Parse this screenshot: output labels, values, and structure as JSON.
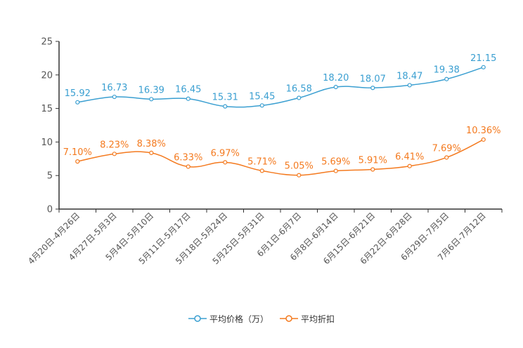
{
  "chart_data": {
    "type": "line",
    "categories": [
      "4月20日-4月26日",
      "4月27日-5月3日",
      "5月4日-5月10日",
      "5月11日-5月17日",
      "5月18日-5月24日",
      "5月25日-5月31日",
      "6月1日-6月7日",
      "6月8日-6月14日",
      "6月15日-6月21日",
      "6月22日-6月28日",
      "6月29日-7月5日",
      "7月6日-7月12日"
    ],
    "yticks": [
      0,
      5,
      10,
      15,
      20,
      25
    ],
    "ylim": [
      0,
      25
    ],
    "series": [
      {
        "name": "平均价格（万）",
        "color": "#3a9fd1",
        "values": [
          15.92,
          16.73,
          16.39,
          16.45,
          15.31,
          15.45,
          16.58,
          18.2,
          18.07,
          18.47,
          19.38,
          21.15
        ],
        "labels": [
          "15.92",
          "16.73",
          "16.39",
          "16.45",
          "15.31",
          "15.45",
          "16.58",
          "18.20",
          "18.07",
          "18.47",
          "19.38",
          "21.15"
        ]
      },
      {
        "name": "平均折扣",
        "color": "#f47a1f",
        "values": [
          7.1,
          8.23,
          8.38,
          6.33,
          6.97,
          5.71,
          5.05,
          5.69,
          5.91,
          6.41,
          7.69,
          10.36
        ],
        "labels": [
          "7.10%",
          "8.23%",
          "8.38%",
          "6.33%",
          "6.97%",
          "5.71%",
          "5.05%",
          "5.69%",
          "5.91%",
          "6.41%",
          "7.69%",
          "10.36%"
        ]
      }
    ],
    "legend_position": "bottom-center"
  }
}
